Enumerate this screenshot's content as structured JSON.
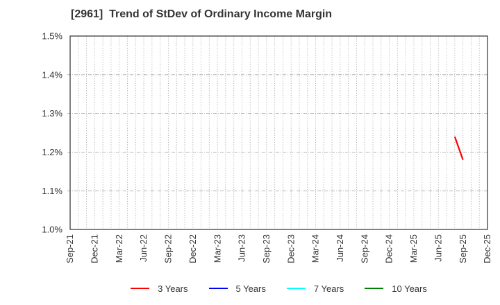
{
  "chart_data": {
    "type": "line",
    "title": "[2961]  Trend of StDev of Ordinary Income Margin",
    "xlabel": "",
    "ylabel": "",
    "ylim": [
      1.0,
      1.5
    ],
    "y_ticks": [
      1.0,
      1.1,
      1.2,
      1.3,
      1.4,
      1.5
    ],
    "y_tick_labels": [
      "1.0%",
      "1.1%",
      "1.2%",
      "1.3%",
      "1.4%",
      "1.5%"
    ],
    "x_tick_labels": [
      "Sep-21",
      "Dec-21",
      "Mar-22",
      "Jun-22",
      "Sep-22",
      "Dec-22",
      "Mar-23",
      "Jun-23",
      "Sep-23",
      "Dec-23",
      "Mar-24",
      "Jun-24",
      "Sep-24",
      "Dec-24",
      "Mar-25",
      "Jun-25",
      "Sep-25",
      "Dec-25"
    ],
    "months_total": 51,
    "months_per_label": 3,
    "grid": {
      "vertical": "dotted, monthly",
      "horizontal": "dashed, at each 0.1% tick"
    },
    "legend_position": "bottom",
    "series": [
      {
        "name": "3 Years",
        "color": "#ff0000",
        "points": [
          {
            "x_label": "Aug-25",
            "month_index": 47,
            "value": 1.24
          },
          {
            "x_label": "Sep-25",
            "month_index": 48,
            "value": 1.18
          }
        ]
      },
      {
        "name": "5 Years",
        "color": "#0000ff",
        "points": []
      },
      {
        "name": "7 Years",
        "color": "#00ffff",
        "points": []
      },
      {
        "name": "10 Years",
        "color": "#008000",
        "points": []
      }
    ]
  }
}
